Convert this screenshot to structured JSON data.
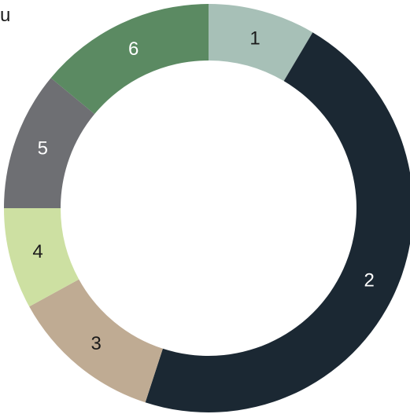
{
  "corner_text": "u",
  "chart_data": {
    "type": "pie",
    "variant": "donut",
    "title": "",
    "categories": [
      "1",
      "2",
      "3",
      "4",
      "5",
      "6"
    ],
    "values": [
      8.5,
      46.5,
      12.0,
      8.0,
      11.0,
      14.0
    ],
    "colors": [
      "#a7c0b7",
      "#1b2833",
      "#bfab93",
      "#cde0a2",
      "#6e6f73",
      "#5b8a62"
    ],
    "label_colors": [
      "#1b1b1b",
      "#ffffff",
      "#1b1b1b",
      "#1b1b1b",
      "#ffffff",
      "#ffffff"
    ],
    "start_angle_deg": 0,
    "direction": "clockwise",
    "legend": "none"
  }
}
